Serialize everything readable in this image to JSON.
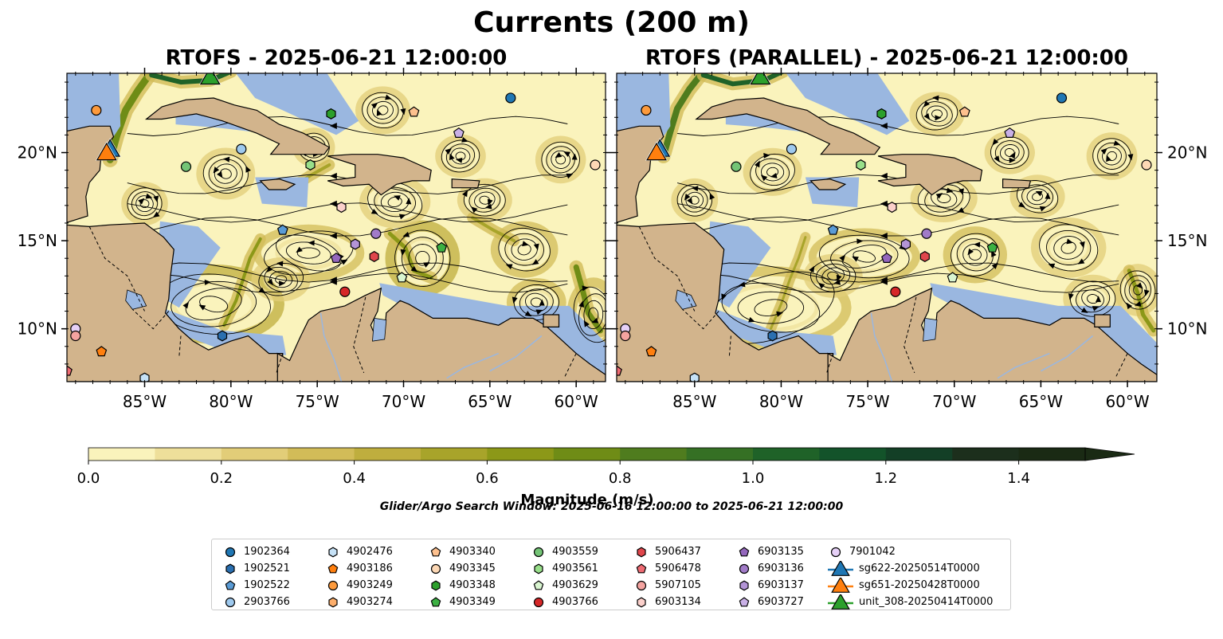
{
  "figure": {
    "suptitle": "Currents (200 m)",
    "panel_left_title": "RTOFS - 2025-06-21 12:00:00",
    "panel_right_title": "RTOFS (PARALLEL) - 2025-06-21 12:00:00",
    "search_window": "Glider/Argo Search Window: 2025-06-16 12:00:00 to 2025-06-21 12:00:00"
  },
  "colors": {
    "land": "#d2b48c",
    "shallow_water": "#9ab7e0",
    "low_speed": "#faf3bc",
    "high_speed": "#1a2a14"
  },
  "chart_data": {
    "type": "heatmap",
    "variable": "current magnitude at 200 m",
    "map": {
      "lon_range": [
        -89.5,
        -58.3
      ],
      "lat_range": [
        7.0,
        24.5
      ],
      "lon_ticks": [
        -85,
        -80,
        -75,
        -70,
        -65,
        -60
      ],
      "lon_tick_labels": [
        "85°W",
        "80°W",
        "75°W",
        "70°W",
        "65°W",
        "60°W"
      ],
      "lat_ticks": [
        10,
        15,
        20
      ],
      "lat_tick_labels": [
        "10°N",
        "15°N",
        "20°N"
      ]
    },
    "colorbar": {
      "label": "Magnitude (m/s)",
      "ticks": [
        0.0,
        0.2,
        0.4,
        0.6,
        0.8,
        1.0,
        1.2,
        1.4
      ],
      "tick_labels": [
        "0.0",
        "0.2",
        "0.4",
        "0.6",
        "0.8",
        "1.0",
        "1.2",
        "1.4"
      ],
      "levels": [
        0.0,
        0.1,
        0.2,
        0.3,
        0.4,
        0.5,
        0.6,
        0.7,
        0.8,
        0.9,
        1.0,
        1.1,
        1.2,
        1.3,
        1.4,
        1.5
      ],
      "colors": [
        "#faf3bc",
        "#eedf9a",
        "#e2cd78",
        "#d2bc58",
        "#bfae3e",
        "#a8a42a",
        "#8c9818",
        "#6f8c16",
        "#4f7c1e",
        "#357024",
        "#1f6228",
        "#13532a",
        "#133f26",
        "#1c2f1c",
        "#1a2a14"
      ],
      "extend": "max"
    },
    "legend": [
      {
        "name": "1902364",
        "marker": "circle",
        "color": "#1f77b4"
      },
      {
        "name": "1902521",
        "marker": "hexagon",
        "color": "#2a6fb0"
      },
      {
        "name": "1902522",
        "marker": "pentagon",
        "color": "#5a9bd5"
      },
      {
        "name": "2903766",
        "marker": "circle",
        "color": "#9ec9ee"
      },
      {
        "name": "4902476",
        "marker": "hexagon",
        "color": "#c6e2f7"
      },
      {
        "name": "4903186",
        "marker": "pentagon",
        "color": "#ff7f0e"
      },
      {
        "name": "4903249",
        "marker": "circle",
        "color": "#fd9a3c"
      },
      {
        "name": "4903274",
        "marker": "hexagon",
        "color": "#fdae6b"
      },
      {
        "name": "4903340",
        "marker": "pentagon",
        "color": "#fdc08e"
      },
      {
        "name": "4903345",
        "marker": "circle",
        "color": "#fdd8b5"
      },
      {
        "name": "4903348",
        "marker": "hexagon",
        "color": "#2ca02c"
      },
      {
        "name": "4903349",
        "marker": "pentagon",
        "color": "#3cb043"
      },
      {
        "name": "4903559",
        "marker": "circle",
        "color": "#74c476"
      },
      {
        "name": "4903561",
        "marker": "hexagon",
        "color": "#98df8a"
      },
      {
        "name": "4903629",
        "marker": "pentagon",
        "color": "#d9f5d0"
      },
      {
        "name": "4903766",
        "marker": "circle",
        "color": "#d62728"
      },
      {
        "name": "5906437",
        "marker": "hexagon",
        "color": "#e0474c"
      },
      {
        "name": "5906478",
        "marker": "pentagon",
        "color": "#ef6b73"
      },
      {
        "name": "5907105",
        "marker": "circle",
        "color": "#f4a3a0"
      },
      {
        "name": "6903134",
        "marker": "hexagon",
        "color": "#fbd0cb"
      },
      {
        "name": "6903135",
        "marker": "pentagon",
        "color": "#9467bd"
      },
      {
        "name": "6903136",
        "marker": "circle",
        "color": "#a17bc8"
      },
      {
        "name": "6903137",
        "marker": "hexagon",
        "color": "#b394d6"
      },
      {
        "name": "6903727",
        "marker": "pentagon",
        "color": "#c9b0e6"
      },
      {
        "name": "7901042",
        "marker": "circle",
        "color": "#e6d0f7"
      },
      {
        "name": "sg622-20250514T0000",
        "marker": "triangle-line",
        "color": "#1f77b4"
      },
      {
        "name": "sg651-20250428T0000",
        "marker": "triangle-line",
        "color": "#ff7f0e"
      },
      {
        "name": "unit_308-20250414T0000",
        "marker": "triangle-line",
        "color": "#2ca02c"
      }
    ],
    "floats": [
      {
        "name": "1902364",
        "lon": -63.8,
        "lat": 23.1
      },
      {
        "name": "4903348",
        "lon": -74.2,
        "lat": 22.2
      },
      {
        "name": "4903340",
        "lon": -69.4,
        "lat": 22.3
      },
      {
        "name": "4903249",
        "lon": -87.8,
        "lat": 22.4
      },
      {
        "name": "6903727",
        "lon": -66.8,
        "lat": 21.1
      },
      {
        "name": "2903766",
        "lon": -79.4,
        "lat": 20.2
      },
      {
        "name": "4903559",
        "lon": -82.6,
        "lat": 19.2
      },
      {
        "name": "4903561",
        "lon": -75.4,
        "lat": 19.3
      },
      {
        "name": "4903345",
        "lon": -58.9,
        "lat": 19.3
      },
      {
        "name": "6903134",
        "lon": -73.6,
        "lat": 16.9
      },
      {
        "name": "1902522",
        "lon": -77.0,
        "lat": 15.6
      },
      {
        "name": "6903136",
        "lon": -71.6,
        "lat": 15.4
      },
      {
        "name": "6903137",
        "lon": -72.8,
        "lat": 14.8
      },
      {
        "name": "4903349",
        "lon": -67.8,
        "lat": 14.6
      },
      {
        "name": "5906437",
        "lon": -71.7,
        "lat": 14.1
      },
      {
        "name": "6903135",
        "lon": -73.9,
        "lat": 14.0
      },
      {
        "name": "4903629",
        "lon": -70.1,
        "lat": 12.9
      },
      {
        "name": "4903766",
        "lon": -73.4,
        "lat": 12.1
      },
      {
        "name": "7901042",
        "lon": -89.0,
        "lat": 10.0
      },
      {
        "name": "5907105",
        "lon": -89.0,
        "lat": 9.6
      },
      {
        "name": "1902521",
        "lon": -80.5,
        "lat": 9.6
      },
      {
        "name": "4903186",
        "lon": -87.5,
        "lat": 8.7
      },
      {
        "name": "5906478",
        "lon": -89.5,
        "lat": 7.6
      },
      {
        "name": "4902476",
        "lon": -85.0,
        "lat": 7.2
      }
    ],
    "gliders": [
      {
        "name": "sg622-20250514T0000",
        "lon": -87.0,
        "lat": 20.2
      },
      {
        "name": "sg651-20250428T0000",
        "lon": -87.2,
        "lat": 20.0
      },
      {
        "name": "unit_308-20250414T0000",
        "lon": -81.2,
        "lat": 24.3
      }
    ]
  }
}
